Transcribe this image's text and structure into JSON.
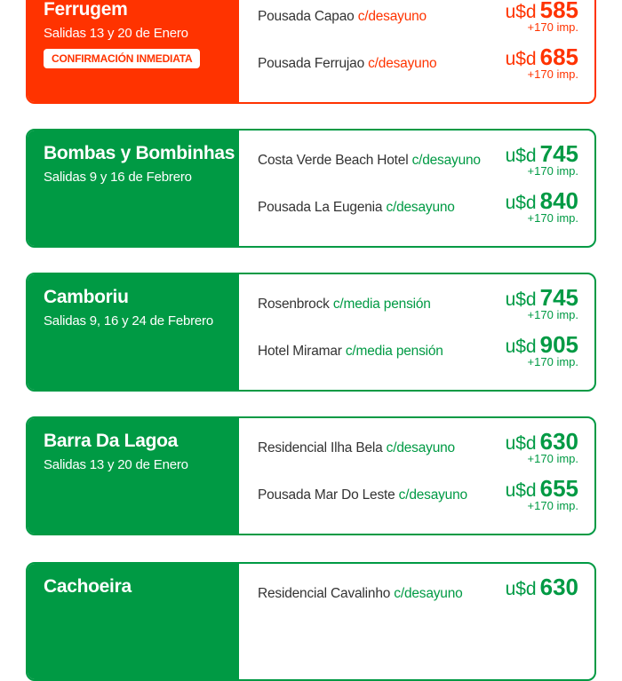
{
  "colors": {
    "orange": "#ff3300",
    "green": "#009a44"
  },
  "cards": [
    {
      "title": "Ferrugem",
      "subtitle": "Salidas 13 y 20 de Enero",
      "badge": "CONFIRMACIÓN INMEDIATA",
      "color": "#ff3300",
      "hotels": [
        {
          "name": "Pousada Capao",
          "meal": "c/desayuno",
          "currency": "u$d",
          "price": "585",
          "taxes": "+170 imp."
        },
        {
          "name": "Pousada Ferrujao",
          "meal": "c/desayuno",
          "currency": "u$d",
          "price": "685",
          "taxes": "+170 imp."
        }
      ]
    },
    {
      "title": "Bombas y Bombinhas",
      "subtitle": "Salidas 9 y 16 de Febrero",
      "color": "#009a44",
      "hotels": [
        {
          "name": "Costa Verde Beach Hotel",
          "meal": "c/desayuno",
          "currency": "u$d",
          "price": "745",
          "taxes": "+170 imp."
        },
        {
          "name": "Pousada La Eugenia",
          "meal": "c/desayuno",
          "currency": "u$d",
          "price": "840",
          "taxes": "+170 imp."
        }
      ]
    },
    {
      "title": "Camboriu",
      "subtitle": "Salidas 9, 16 y 24 de Febrero",
      "color": "#009a44",
      "hotels": [
        {
          "name": "Rosenbrock",
          "meal": "c/media pensión",
          "currency": "u$d",
          "price": "745",
          "taxes": "+170 imp."
        },
        {
          "name": "Hotel Miramar",
          "meal": "c/media pensión",
          "currency": "u$d",
          "price": "905",
          "taxes": "+170 imp."
        }
      ]
    },
    {
      "title": "Barra Da Lagoa",
      "subtitle": "Salidas 13 y 20 de Enero",
      "color": "#009a44",
      "hotels": [
        {
          "name": "Residencial Ilha Bela",
          "meal": "c/desayuno",
          "currency": "u$d",
          "price": "630",
          "taxes": "+170 imp."
        },
        {
          "name": "Pousada Mar Do Leste",
          "meal": "c/desayuno",
          "currency": "u$d",
          "price": "655",
          "taxes": "+170 imp."
        }
      ]
    },
    {
      "title": "Cachoeira",
      "color": "#009a44",
      "hotels": [
        {
          "name": "Residencial Cavalinho",
          "meal": "c/desayuno",
          "currency": "u$d",
          "price": "630"
        }
      ]
    }
  ]
}
